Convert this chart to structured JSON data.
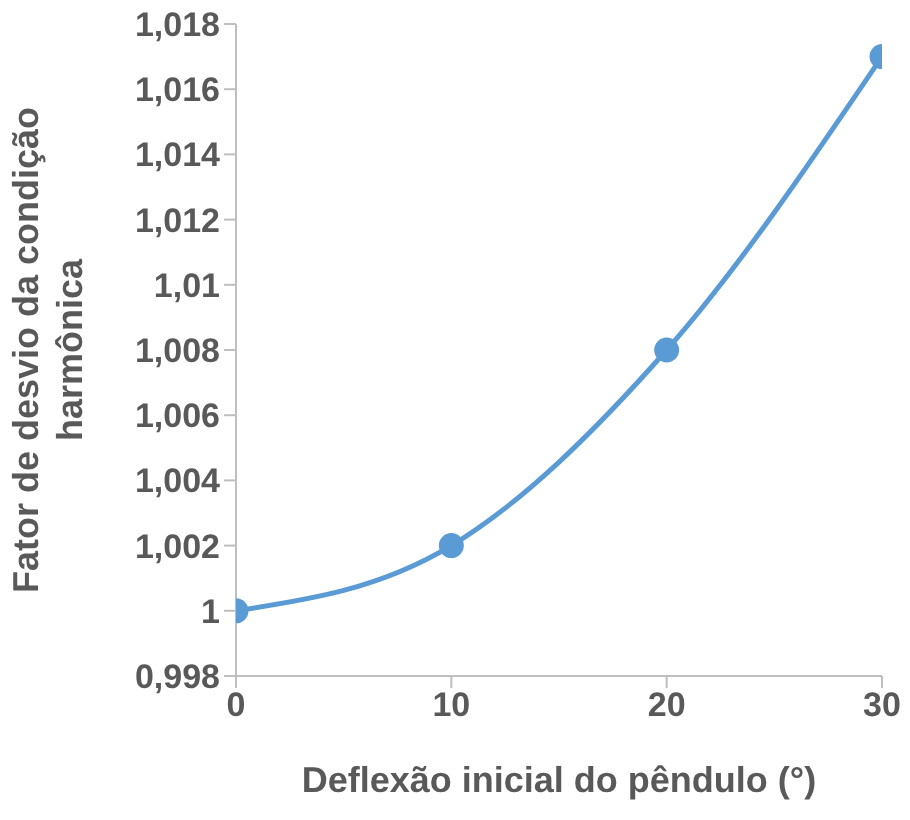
{
  "chart_data": {
    "type": "line",
    "xlabel": "Deflexão inicial do pêndulo (°)",
    "ylabel": "Fator de desvio da condição harmônica",
    "x": [
      0,
      10,
      20,
      30
    ],
    "values": [
      1,
      1.002,
      1.008,
      1.017
    ],
    "color": "#5b9bd5",
    "marker": "circle",
    "line_style": "solid",
    "grid": false,
    "xlim": [
      0,
      30
    ],
    "xticks": [
      0,
      10,
      20,
      30
    ],
    "ylim": [
      0.998,
      1.018
    ],
    "yticks": [
      {
        "value": 0.998,
        "label": "0,998"
      },
      {
        "value": 1,
        "label": "1"
      },
      {
        "value": 1.002,
        "label": "1,002"
      },
      {
        "value": 1.004,
        "label": "1,004"
      },
      {
        "value": 1.006,
        "label": "1,006"
      },
      {
        "value": 1.008,
        "label": "1,008"
      },
      {
        "value": 1.01,
        "label": "1,01"
      },
      {
        "value": 1.012,
        "label": "1,012"
      },
      {
        "value": 1.014,
        "label": "1,014"
      },
      {
        "value": 1.016,
        "label": "1,016"
      },
      {
        "value": 1.018,
        "label": "1,018"
      }
    ]
  }
}
